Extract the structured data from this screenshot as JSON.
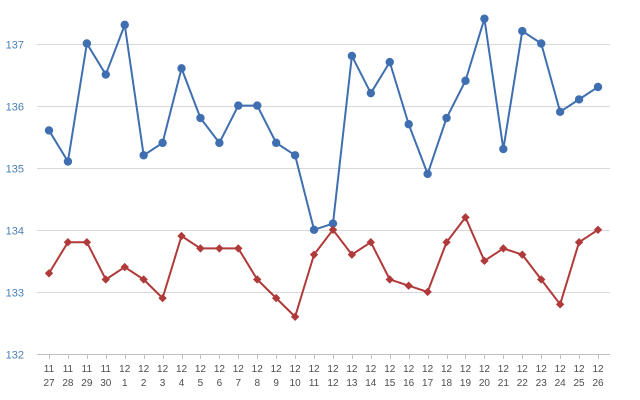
{
  "chart_data": {
    "type": "line",
    "title": "",
    "xlabel": "",
    "ylabel": "",
    "ylim": [
      132,
      137.5
    ],
    "yticks": [
      132,
      133,
      134,
      135,
      136,
      137
    ],
    "grid": true,
    "categories": [
      [
        "11",
        "27"
      ],
      [
        "11",
        "28"
      ],
      [
        "11",
        "29"
      ],
      [
        "11",
        "30"
      ],
      [
        "12",
        "1"
      ],
      [
        "12",
        "2"
      ],
      [
        "12",
        "3"
      ],
      [
        "12",
        "4"
      ],
      [
        "12",
        "5"
      ],
      [
        "12",
        "6"
      ],
      [
        "12",
        "7"
      ],
      [
        "12",
        "8"
      ],
      [
        "12",
        "9"
      ],
      [
        "12",
        "10"
      ],
      [
        "12",
        "11"
      ],
      [
        "12",
        "12"
      ],
      [
        "12",
        "13"
      ],
      [
        "12",
        "14"
      ],
      [
        "12",
        "15"
      ],
      [
        "12",
        "16"
      ],
      [
        "12",
        "17"
      ],
      [
        "12",
        "18"
      ],
      [
        "12",
        "19"
      ],
      [
        "12",
        "20"
      ],
      [
        "12",
        "21"
      ],
      [
        "12",
        "22"
      ],
      [
        "12",
        "23"
      ],
      [
        "12",
        "24"
      ],
      [
        "12",
        "25"
      ],
      [
        "12",
        "26"
      ]
    ],
    "series": [
      {
        "color": "#3f6fb0",
        "marker": "circle",
        "values": [
          135.6,
          135.1,
          137.0,
          136.5,
          137.3,
          135.2,
          135.4,
          136.6,
          135.8,
          135.4,
          136.0,
          136.0,
          135.4,
          135.2,
          134.0,
          134.1,
          136.8,
          136.2,
          136.7,
          135.7,
          134.9,
          135.8,
          136.4,
          137.4,
          135.3,
          137.2,
          137.0,
          135.9,
          136.1,
          136.3
        ]
      },
      {
        "color": "#b03a3a",
        "marker": "diamond",
        "values": [
          133.3,
          133.8,
          133.8,
          133.2,
          133.4,
          133.2,
          132.9,
          133.9,
          133.7,
          133.7,
          133.7,
          133.2,
          132.9,
          132.6,
          133.6,
          134.0,
          133.6,
          133.8,
          133.2,
          133.1,
          133.0,
          133.8,
          134.2,
          133.5,
          133.7,
          133.6,
          133.2,
          132.8,
          133.8,
          134.0
        ]
      }
    ]
  }
}
